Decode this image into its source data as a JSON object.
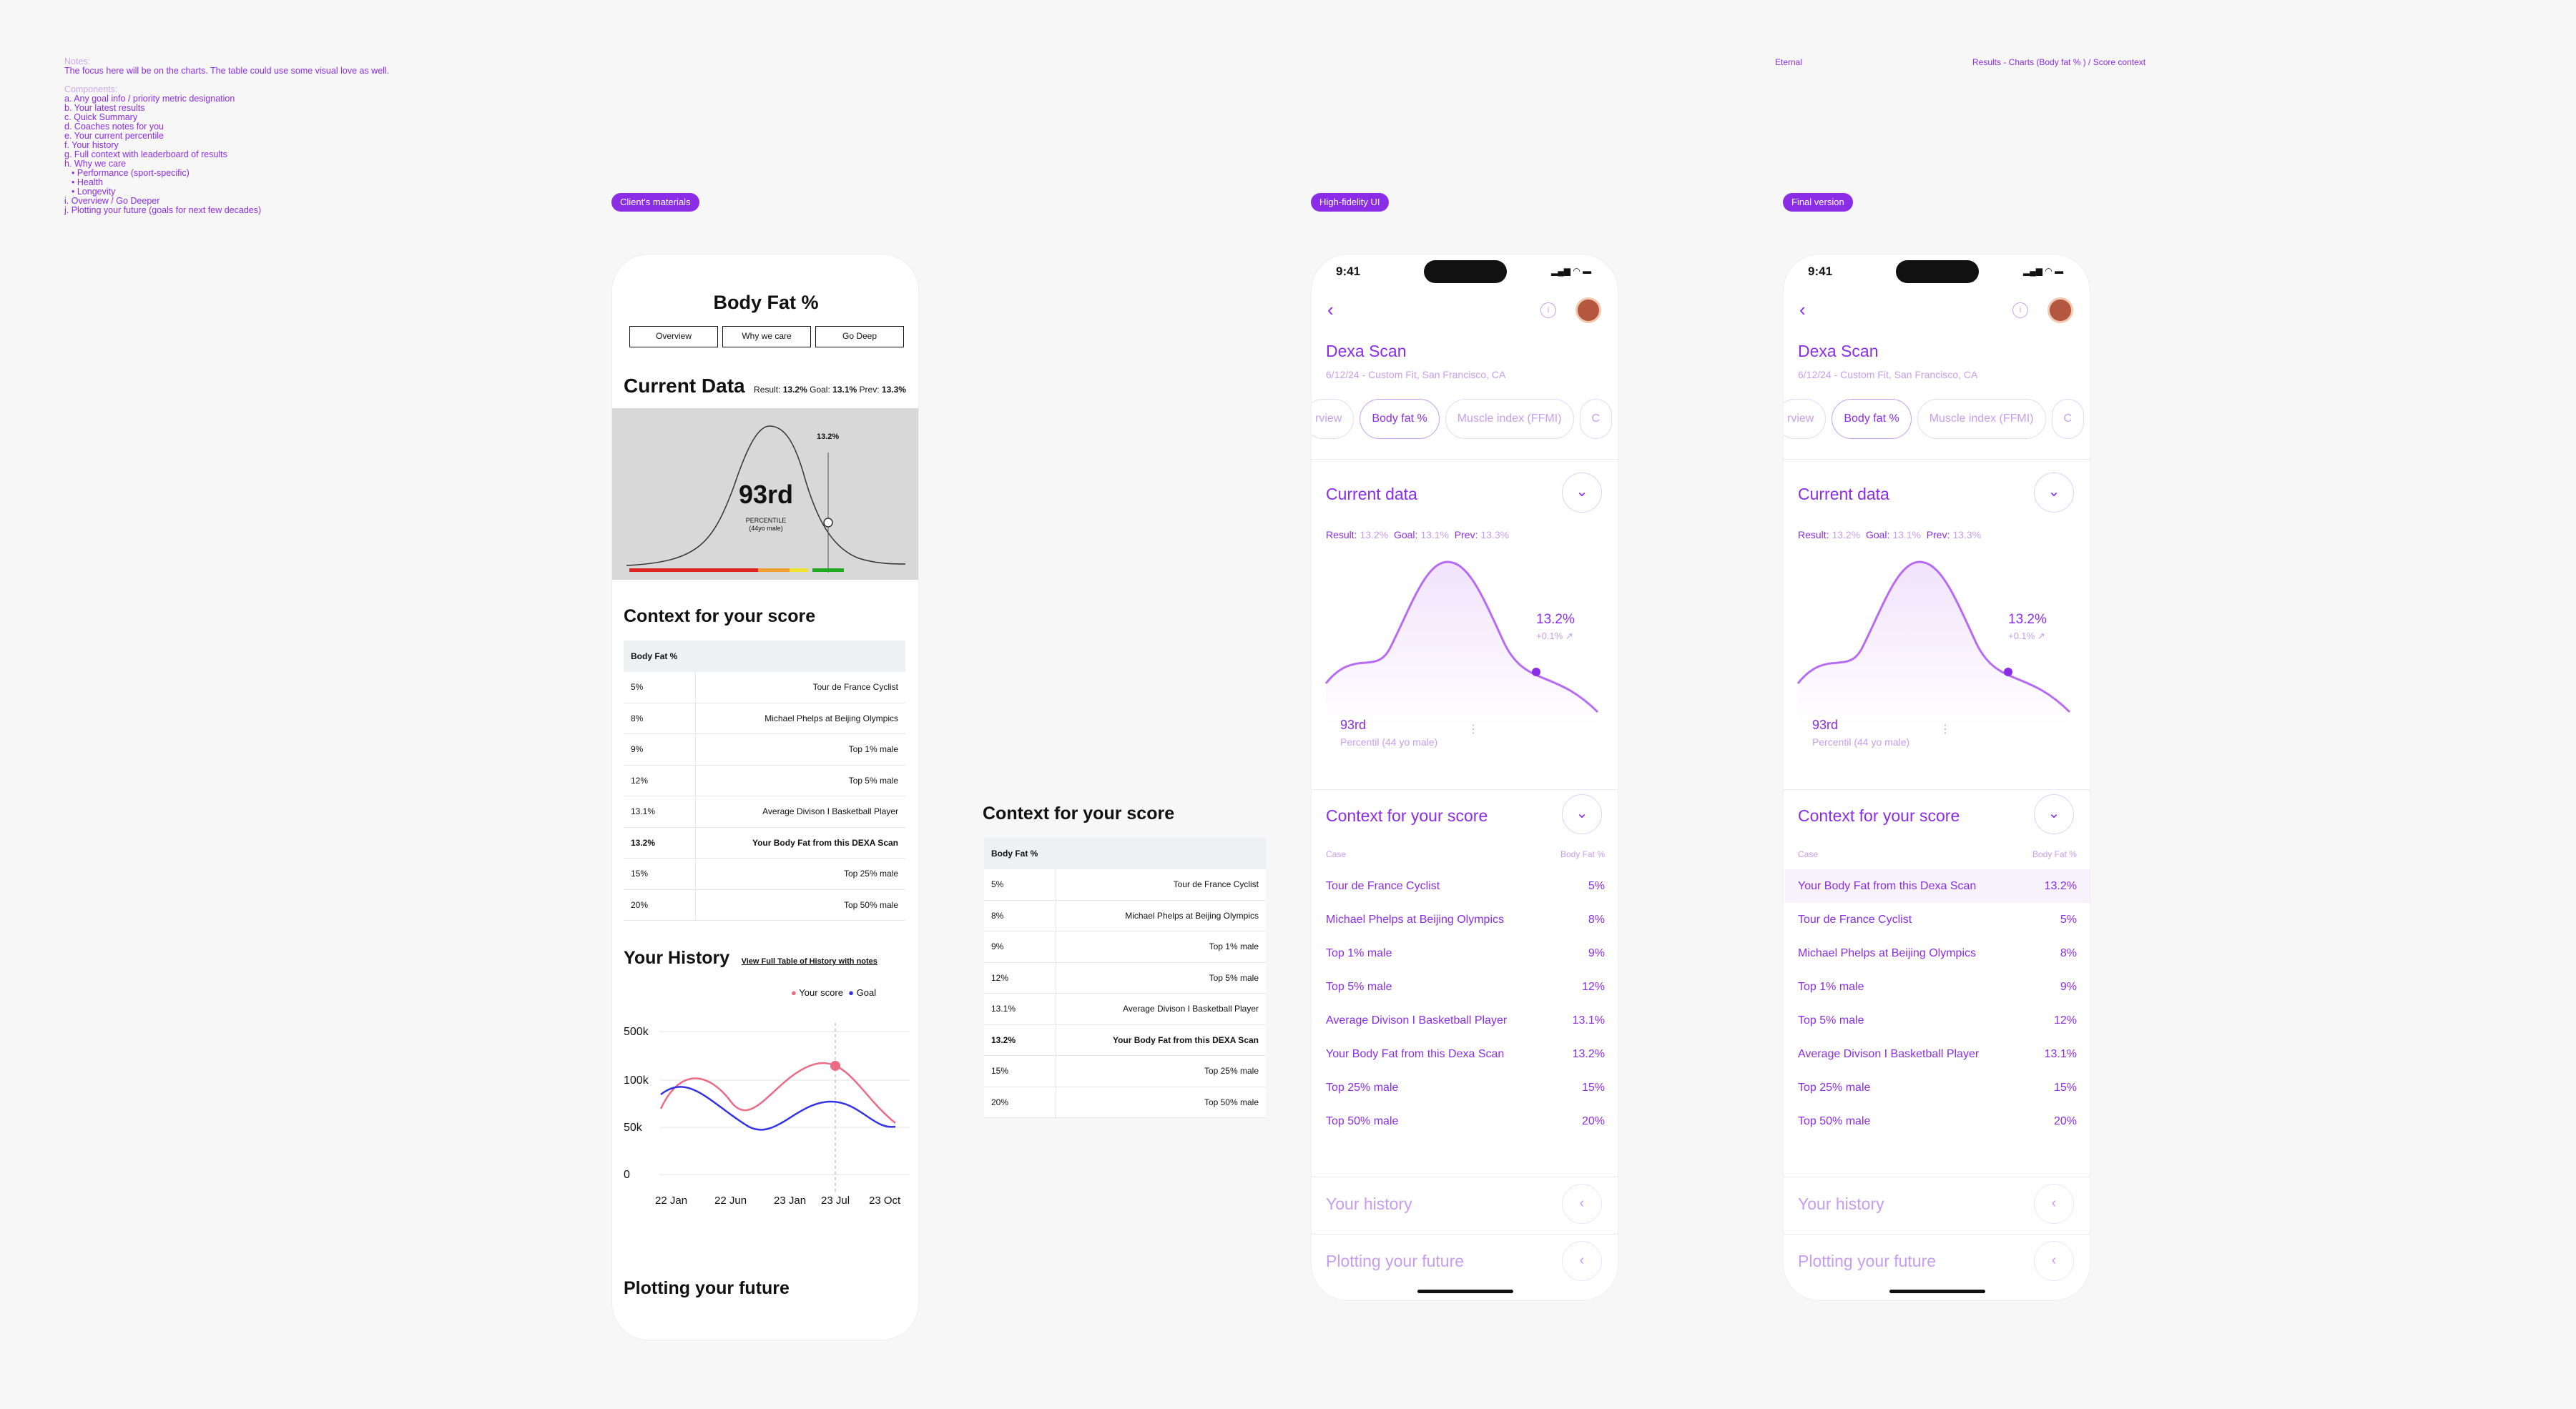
{
  "notes": {
    "notes_title": "Notes:",
    "notes_text": "The focus here will be on the charts. The table could use some visual love as well.",
    "components_title": "Components:",
    "components": [
      "a. Any goal info / priority metric designation",
      "b. Your latest results",
      "c. Quick Summary",
      "d. Coaches notes for you",
      "e. Your current percentile",
      "f. Your history",
      "g. Full context with leaderboard of results",
      "h. Why we care"
    ],
    "why_items": [
      "Performance (sport-specific)",
      "Health",
      "Longevity"
    ],
    "components_tail": [
      "i. Overview / Go Deeper",
      "j. Plotting your future (goals for next few decades)"
    ]
  },
  "header": {
    "eternal": "Eternal",
    "breadcrumb": "Results - Charts (Body fat % ) / Score context"
  },
  "tags": {
    "client": "Client's materials",
    "hifi": "High-fidelity UI",
    "final": "Final version"
  },
  "wireframe": {
    "title": "Body Fat %",
    "tabs": [
      "Overview",
      "Why we care",
      "Go Deep"
    ],
    "current_heading": "Current Data",
    "result_label": "Result:",
    "result": "13.2%",
    "goal_label": "Goal:",
    "goal": "13.1%",
    "prev_label": "Prev:",
    "prev": "13.3%",
    "marker_value": "13.2%",
    "percentile": "93rd",
    "percentile_label": "PERCENTILE",
    "percentile_sub": "(44yo male)",
    "context_heading": "Context for your score",
    "table_header": "Body Fat %",
    "rows": [
      [
        "5%",
        "Tour de France Cyclist"
      ],
      [
        "8%",
        "Michael Phelps at Beijing Olympics"
      ],
      [
        "9%",
        "Top 1% male"
      ],
      [
        "12%",
        "Top 5% male"
      ],
      [
        "13.1%",
        "Average Divison I Basketball Player"
      ],
      [
        "13.2%",
        "Your Body Fat from this DEXA Scan"
      ],
      [
        "15%",
        "Top 25% male"
      ],
      [
        "20%",
        "Top 50% male"
      ]
    ],
    "history_heading": "Your History",
    "history_link": "View Full Table of History with notes",
    "legend_score": "Your score",
    "legend_goal": "Goal",
    "y_ticks": [
      "500k",
      "100k",
      "50k",
      "0"
    ],
    "x_ticks": [
      "22 Jan",
      "22 Jun",
      "23 Jan",
      "23 Jul",
      "23 Oct"
    ],
    "future_heading": "Plotting your future",
    "colors": {
      "score": "#ec6b84",
      "goal": "#3333e6",
      "bar_red": "#d22",
      "bar_orange": "#f0a030",
      "bar_yellow": "#f0e030",
      "bar_green": "#2a2"
    }
  },
  "mid_table": {
    "heading": "Context for your score",
    "table_header": "Body Fat %",
    "rows": [
      [
        "5%",
        "Tour de France Cyclist"
      ],
      [
        "8%",
        "Michael Phelps at Beijing Olympics"
      ],
      [
        "9%",
        "Top 1% male"
      ],
      [
        "12%",
        "Top 5% male"
      ],
      [
        "13.1%",
        "Average Divison I Basketball Player"
      ],
      [
        "13.2%",
        "Your Body Fat from this DEXA Scan"
      ],
      [
        "15%",
        "Top 25% male"
      ],
      [
        "20%",
        "Top 50% male"
      ]
    ]
  },
  "hifi": {
    "time": "9:41",
    "title": "Dexa Scan",
    "subtitle": "6/12/24 - Custom Fit, San Francisco, CA",
    "chips": [
      "rview",
      "Body fat %",
      "Muscle index (FFMI)",
      "C"
    ],
    "current_heading": "Current data",
    "result_label": "Result:",
    "result": "13.2%",
    "goal_label": "Goal:",
    "goal": "13.1%",
    "prev_label": "Prev:",
    "prev": "13.3%",
    "marker_value": "13.2%",
    "delta": "+0.1%",
    "percentile": "93rd",
    "percentile_label": "Percentil (44 yo male)",
    "context_heading": "Context for your score",
    "col_case": "Case",
    "col_value": "Body Fat %",
    "rows": [
      [
        "Tour de France Cyclist",
        "5%"
      ],
      [
        "Michael Phelps at Beijing Olympics",
        "8%"
      ],
      [
        "Top 1% male",
        "9%"
      ],
      [
        "Top 5% male",
        "12%"
      ],
      [
        "Average Divison I Basketball Player",
        "13.1%"
      ],
      [
        "Your Body Fat from this Dexa Scan",
        "13.2%"
      ],
      [
        "Top 25% male",
        "15%"
      ],
      [
        "Top 50% male",
        "20%"
      ]
    ],
    "history_heading": "Your history",
    "future_heading": "Plotting your future",
    "accent": "#8b2ce6"
  },
  "final": {
    "time": "9:41",
    "title": "Dexa Scan",
    "subtitle": "6/12/24 - Custom Fit, San Francisco, CA",
    "chips": [
      "rview",
      "Body fat %",
      "Muscle index (FFMI)",
      "C"
    ],
    "current_heading": "Current data",
    "result_label": "Result:",
    "result": "13.2%",
    "goal_label": "Goal:",
    "goal": "13.1%",
    "prev_label": "Prev:",
    "prev": "13.3%",
    "marker_value": "13.2%",
    "delta": "+0.1%",
    "percentile": "93rd",
    "percentile_label": "Percentil (44 yo male)",
    "context_heading": "Context for your score",
    "col_case": "Case",
    "col_value": "Body Fat %",
    "rows": [
      [
        "Your Body Fat from this Dexa Scan",
        "13.2%"
      ],
      [
        "Tour de France Cyclist",
        "5%"
      ],
      [
        "Michael Phelps at Beijing Olympics",
        "8%"
      ],
      [
        "Top 1% male",
        "9%"
      ],
      [
        "Top 5% male",
        "12%"
      ],
      [
        "Average Divison I Basketball Player",
        "13.1%"
      ],
      [
        "Top 25% male",
        "15%"
      ],
      [
        "Top 50% male",
        "20%"
      ]
    ],
    "history_heading": "Your history",
    "future_heading": "Plotting your future"
  }
}
